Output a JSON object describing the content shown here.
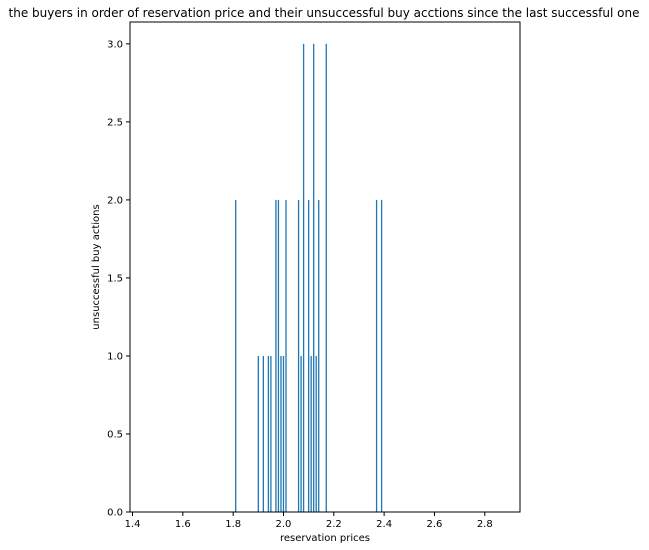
{
  "chart_data": {
    "type": "bar",
    "title": "the buyers in order of reservation price and their unsuccessful buy acctions since the last successful one",
    "xlabel": "reservation prices",
    "ylabel": "unsuccessful buy actions",
    "xlim": [
      1.39,
      2.94
    ],
    "ylim": [
      0,
      3.14
    ],
    "xticks": [
      "1.4",
      "1.6",
      "1.8",
      "2.0",
      "2.2",
      "2.4",
      "2.6",
      "2.8"
    ],
    "yticks": [
      "0.0",
      "0.5",
      "1.0",
      "1.5",
      "2.0",
      "2.5",
      "3.0"
    ],
    "grid": false,
    "bar_color": "#1f77b4",
    "x": [
      1.81,
      1.9,
      1.92,
      1.94,
      1.95,
      1.97,
      1.98,
      1.99,
      2.0,
      2.01,
      2.06,
      2.07,
      2.08,
      2.1,
      2.11,
      2.12,
      2.13,
      2.14,
      2.17,
      2.37,
      2.39
    ],
    "values": [
      2,
      1,
      1,
      1,
      1,
      2,
      2,
      1,
      1,
      2,
      2,
      1,
      3,
      2,
      1,
      3,
      1,
      2,
      3,
      2,
      2
    ]
  }
}
